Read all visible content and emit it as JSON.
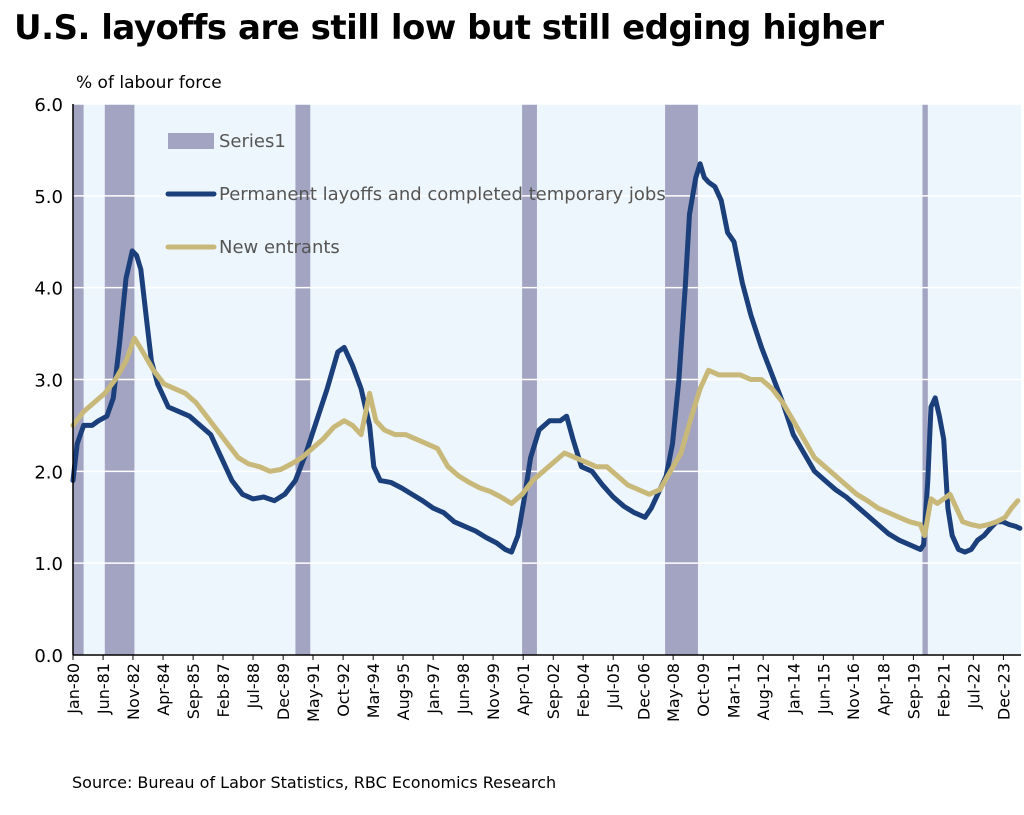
{
  "title": "U.S. layoffs are still low but still edging higher",
  "source": "Source: Bureau of Labor Statistics, RBC Economics Research",
  "colors": {
    "plot_background": "#eef6fd",
    "recession": "#a3a3c2",
    "permanent": "#1b3f7a",
    "new_entrants": "#c8b87a",
    "grid": "#ffffff"
  },
  "chart_data": {
    "type": "line",
    "ylabel": "% of labour force",
    "ylim": [
      0,
      6
    ],
    "yticks": [
      "0.0",
      "1.0",
      "2.0",
      "3.0",
      "4.0",
      "5.0",
      "6.0"
    ],
    "xlim": [
      1980.0,
      2024.75
    ],
    "xticks": [
      {
        "label": "Jan-80",
        "x": 1980.0
      },
      {
        "label": "Jun-81",
        "x": 1981.42
      },
      {
        "label": "Nov-82",
        "x": 1982.83
      },
      {
        "label": "Apr-84",
        "x": 1984.25
      },
      {
        "label": "Sep-85",
        "x": 1985.67
      },
      {
        "label": "Feb-87",
        "x": 1987.08
      },
      {
        "label": "Jul-88",
        "x": 1988.5
      },
      {
        "label": "Dec-89",
        "x": 1989.92
      },
      {
        "label": "May-91",
        "x": 1991.33
      },
      {
        "label": "Oct-92",
        "x": 1992.75
      },
      {
        "label": "Mar-94",
        "x": 1994.17
      },
      {
        "label": "Aug-95",
        "x": 1995.58
      },
      {
        "label": "Jan-97",
        "x": 1997.0
      },
      {
        "label": "Jun-98",
        "x": 1998.42
      },
      {
        "label": "Nov-99",
        "x": 1999.83
      },
      {
        "label": "Apr-01",
        "x": 2001.25
      },
      {
        "label": "Sep-02",
        "x": 2002.67
      },
      {
        "label": "Feb-04",
        "x": 2004.08
      },
      {
        "label": "Jul-05",
        "x": 2005.5
      },
      {
        "label": "Dec-06",
        "x": 2006.92
      },
      {
        "label": "May-08",
        "x": 2008.33
      },
      {
        "label": "Oct-09",
        "x": 2009.75
      },
      {
        "label": "Mar-11",
        "x": 2011.17
      },
      {
        "label": "Aug-12",
        "x": 2012.58
      },
      {
        "label": "Jan-14",
        "x": 2014.0
      },
      {
        "label": "Jun-15",
        "x": 2015.42
      },
      {
        "label": "Nov-16",
        "x": 2016.83
      },
      {
        "label": "Apr-18",
        "x": 2018.25
      },
      {
        "label": "Sep-19",
        "x": 2019.67
      },
      {
        "label": "Feb-21",
        "x": 2021.08
      },
      {
        "label": "Jul-22",
        "x": 2022.5
      },
      {
        "label": "Dec-23",
        "x": 2023.92
      }
    ],
    "recessions": [
      {
        "name": "Series1",
        "start": 1980.0,
        "end": 1980.5
      },
      {
        "name": "Series1",
        "start": 1981.5,
        "end": 1982.9
      },
      {
        "name": "Series1",
        "start": 1990.5,
        "end": 1991.2
      },
      {
        "name": "Series1",
        "start": 2001.2,
        "end": 2001.9
      },
      {
        "name": "Series1",
        "start": 2007.95,
        "end": 2009.5
      },
      {
        "name": "Series1",
        "start": 2020.1,
        "end": 2020.35
      }
    ],
    "legend": {
      "placement": "top-left",
      "entries": [
        {
          "label": "Series1",
          "kind": "bar"
        },
        {
          "label": "Permanent layoffs and completed temporary jobs",
          "kind": "line"
        },
        {
          "label": "New entrants",
          "kind": "line"
        }
      ]
    },
    "series": [
      {
        "name": "Permanent layoffs and completed temporary jobs",
        "x": [
          1980.0,
          1980.2,
          1980.5,
          1980.9,
          1981.2,
          1981.6,
          1981.9,
          1982.2,
          1982.5,
          1982.8,
          1983.0,
          1983.2,
          1983.5,
          1983.7,
          1984.0,
          1984.5,
          1985.0,
          1985.5,
          1986.0,
          1986.5,
          1987.0,
          1987.5,
          1988.0,
          1988.5,
          1989.0,
          1989.5,
          1990.0,
          1990.5,
          1991.0,
          1991.5,
          1992.0,
          1992.5,
          1992.8,
          1993.2,
          1993.6,
          1994.0,
          1994.2,
          1994.5,
          1995.0,
          1995.5,
          1996.0,
          1996.5,
          1997.0,
          1997.5,
          1998.0,
          1998.5,
          1999.0,
          1999.5,
          2000.0,
          2000.4,
          2000.7,
          2001.0,
          2001.3,
          2001.6,
          2002.0,
          2002.5,
          2003.0,
          2003.3,
          2003.6,
          2004.0,
          2004.5,
          2005.0,
          2005.5,
          2006.0,
          2006.5,
          2007.0,
          2007.3,
          2007.6,
          2008.0,
          2008.3,
          2008.6,
          2008.9,
          2009.1,
          2009.4,
          2009.6,
          2009.8,
          2010.0,
          2010.3,
          2010.6,
          2010.9,
          2011.2,
          2011.6,
          2012.0,
          2012.5,
          2013.0,
          2013.5,
          2014.0,
          2014.5,
          2015.0,
          2015.5,
          2016.0,
          2016.5,
          2017.0,
          2017.5,
          2018.0,
          2018.5,
          2019.0,
          2019.5,
          2020.0,
          2020.15,
          2020.35,
          2020.5,
          2020.7,
          2020.9,
          2021.1,
          2021.3,
          2021.5,
          2021.8,
          2022.1,
          2022.4,
          2022.7,
          2023.0,
          2023.3,
          2023.6,
          2023.9,
          2024.2,
          2024.5,
          2024.7
        ],
        "values": [
          1.9,
          2.3,
          2.5,
          2.5,
          2.55,
          2.6,
          2.8,
          3.4,
          4.1,
          4.4,
          4.35,
          4.2,
          3.6,
          3.2,
          2.95,
          2.7,
          2.65,
          2.6,
          2.5,
          2.4,
          2.15,
          1.9,
          1.75,
          1.7,
          1.72,
          1.68,
          1.75,
          1.9,
          2.2,
          2.55,
          2.9,
          3.3,
          3.35,
          3.15,
          2.9,
          2.5,
          2.05,
          1.9,
          1.88,
          1.82,
          1.75,
          1.68,
          1.6,
          1.55,
          1.45,
          1.4,
          1.35,
          1.28,
          1.22,
          1.15,
          1.12,
          1.3,
          1.7,
          2.15,
          2.45,
          2.55,
          2.55,
          2.6,
          2.35,
          2.05,
          2.0,
          1.85,
          1.72,
          1.62,
          1.55,
          1.5,
          1.6,
          1.75,
          1.95,
          2.3,
          3.0,
          4.0,
          4.8,
          5.2,
          5.35,
          5.2,
          5.15,
          5.1,
          4.95,
          4.6,
          4.5,
          4.05,
          3.7,
          3.35,
          3.05,
          2.75,
          2.4,
          2.2,
          2.0,
          1.9,
          1.8,
          1.72,
          1.62,
          1.52,
          1.42,
          1.32,
          1.25,
          1.2,
          1.15,
          1.2,
          1.9,
          2.7,
          2.8,
          2.6,
          2.35,
          1.6,
          1.3,
          1.15,
          1.12,
          1.15,
          1.25,
          1.3,
          1.38,
          1.45,
          1.45,
          1.42,
          1.4,
          1.38
        ]
      },
      {
        "name": "New entrants",
        "x": [
          1980.0,
          1980.5,
          1981.0,
          1981.5,
          1982.0,
          1982.5,
          1982.9,
          1983.3,
          1983.8,
          1984.3,
          1984.8,
          1985.3,
          1985.8,
          1986.3,
          1986.8,
          1987.3,
          1987.8,
          1988.3,
          1988.8,
          1989.3,
          1989.8,
          1990.3,
          1990.8,
          1991.3,
          1991.8,
          1992.3,
          1992.8,
          1993.2,
          1993.6,
          1994.0,
          1994.3,
          1994.7,
          1995.2,
          1995.7,
          1996.2,
          1996.7,
          1997.2,
          1997.7,
          1998.2,
          1998.7,
          1999.2,
          1999.7,
          2000.2,
          2000.7,
          2001.2,
          2001.7,
          2002.2,
          2002.7,
          2003.2,
          2003.7,
          2004.2,
          2004.7,
          2005.2,
          2005.7,
          2006.2,
          2006.7,
          2007.2,
          2007.7,
          2008.2,
          2008.7,
          2009.2,
          2009.6,
          2010.0,
          2010.5,
          2011.0,
          2011.5,
          2012.0,
          2012.5,
          2013.0,
          2013.5,
          2014.0,
          2014.5,
          2015.0,
          2015.5,
          2016.0,
          2016.5,
          2017.0,
          2017.5,
          2018.0,
          2018.5,
          2019.0,
          2019.5,
          2020.0,
          2020.2,
          2020.5,
          2020.8,
          2021.1,
          2021.4,
          2021.7,
          2022.0,
          2022.4,
          2022.8,
          2023.2,
          2023.6,
          2024.0,
          2024.3,
          2024.6
        ],
        "values": [
          2.5,
          2.65,
          2.75,
          2.85,
          3.0,
          3.2,
          3.45,
          3.3,
          3.1,
          2.95,
          2.9,
          2.85,
          2.75,
          2.6,
          2.45,
          2.3,
          2.15,
          2.08,
          2.05,
          2.0,
          2.02,
          2.08,
          2.15,
          2.25,
          2.35,
          2.48,
          2.55,
          2.5,
          2.4,
          2.85,
          2.55,
          2.45,
          2.4,
          2.4,
          2.35,
          2.3,
          2.25,
          2.05,
          1.95,
          1.88,
          1.82,
          1.78,
          1.72,
          1.65,
          1.75,
          1.9,
          2.0,
          2.1,
          2.2,
          2.15,
          2.1,
          2.05,
          2.05,
          1.95,
          1.85,
          1.8,
          1.75,
          1.8,
          2.0,
          2.2,
          2.6,
          2.9,
          3.1,
          3.05,
          3.05,
          3.05,
          3.0,
          3.0,
          2.9,
          2.75,
          2.55,
          2.35,
          2.15,
          2.05,
          1.95,
          1.85,
          1.75,
          1.68,
          1.6,
          1.55,
          1.5,
          1.45,
          1.42,
          1.3,
          1.7,
          1.65,
          1.7,
          1.75,
          1.6,
          1.45,
          1.42,
          1.4,
          1.42,
          1.45,
          1.5,
          1.6,
          1.68
        ]
      }
    ]
  }
}
